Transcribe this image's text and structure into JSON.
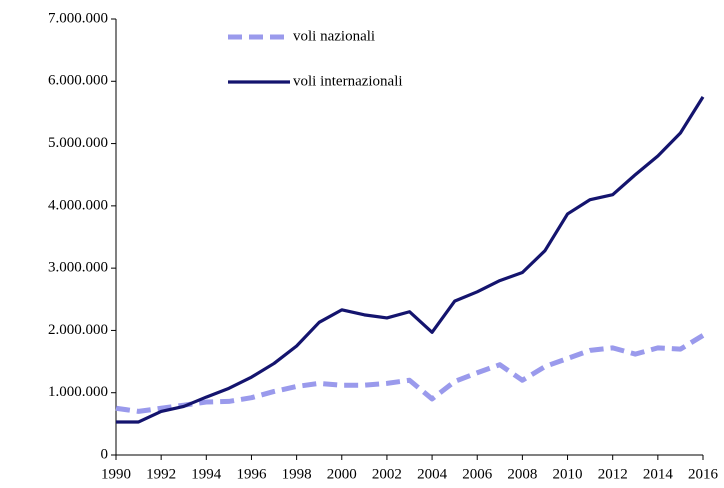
{
  "chart_data": {
    "type": "line",
    "x": [
      1990,
      1991,
      1992,
      1993,
      1994,
      1995,
      1996,
      1997,
      1998,
      1999,
      2000,
      2001,
      2002,
      2003,
      2004,
      2005,
      2006,
      2007,
      2008,
      2009,
      2010,
      2011,
      2012,
      2013,
      2014,
      2015,
      2016
    ],
    "series": [
      {
        "name": "voli nazionali",
        "color": "#9a9aec",
        "linestyle": "dashed",
        "values": [
          750000,
          700000,
          750000,
          800000,
          850000,
          860000,
          920000,
          1020000,
          1100000,
          1150000,
          1120000,
          1120000,
          1150000,
          1200000,
          900000,
          1180000,
          1320000,
          1450000,
          1200000,
          1420000,
          1550000,
          1680000,
          1720000,
          1620000,
          1720000,
          1700000,
          1920000
        ]
      },
      {
        "name": "voli internazionali",
        "color": "#14146e",
        "linestyle": "solid",
        "values": [
          530000,
          530000,
          700000,
          780000,
          930000,
          1070000,
          1250000,
          1470000,
          1750000,
          2130000,
          2330000,
          2250000,
          2200000,
          2300000,
          1970000,
          2470000,
          2620000,
          2800000,
          2930000,
          3280000,
          3870000,
          4100000,
          4180000,
          4500000,
          4800000,
          5170000,
          5750000
        ]
      }
    ],
    "xlim": [
      1990,
      2016
    ],
    "xticks": [
      1990,
      1992,
      1994,
      1996,
      1998,
      2000,
      2002,
      2004,
      2006,
      2008,
      2010,
      2012,
      2014,
      2016
    ],
    "ylim": [
      0,
      7000000
    ],
    "yticks": [
      0,
      {
        "value": 1000000,
        "label": "1.000.000"
      },
      {
        "value": 2000000,
        "label": "2.000.000"
      },
      {
        "value": 3000000,
        "label": "3.000.000"
      },
      {
        "value": 4000000,
        "label": "4.000.000"
      },
      {
        "value": 5000000,
        "label": "5.000.000"
      },
      {
        "value": 6000000,
        "label": "6.000.000"
      },
      {
        "value": 7000000,
        "label": "7.000.000"
      }
    ],
    "grid": false,
    "legend": "upper center"
  }
}
